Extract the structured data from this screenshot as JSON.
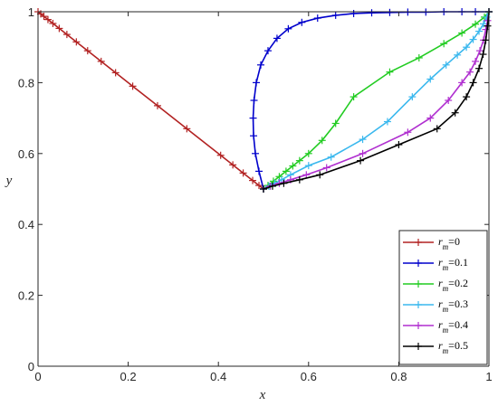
{
  "chart_data": {
    "type": "line",
    "xlabel": "x",
    "ylabel": "y",
    "xlim": [
      0,
      1
    ],
    "ylim": [
      0,
      1
    ],
    "xticks": [
      "0",
      "0.2",
      "0.4",
      "0.6",
      "0.8",
      "1"
    ],
    "yticks": [
      "0",
      "0.2",
      "0.4",
      "0.6",
      "0.8",
      "1"
    ],
    "grid": false,
    "legend_position": "bottom-right",
    "series": [
      {
        "name": "r_m=0",
        "legend_var": "r",
        "legend_sub": "m",
        "legend_val": "=0",
        "color": "#b22222",
        "x": [
          0.0,
          0.006,
          0.013,
          0.022,
          0.033,
          0.047,
          0.064,
          0.085,
          0.11,
          0.14,
          0.172,
          0.21,
          0.265,
          0.33,
          0.405,
          0.432,
          0.455,
          0.476,
          0.49,
          0.5
        ],
        "y": [
          1.0,
          0.994,
          0.987,
          0.978,
          0.967,
          0.953,
          0.936,
          0.915,
          0.89,
          0.86,
          0.828,
          0.79,
          0.735,
          0.67,
          0.595,
          0.568,
          0.545,
          0.524,
          0.51,
          0.5
        ]
      },
      {
        "name": "r_m=0.1",
        "legend_var": "r",
        "legend_sub": "m",
        "legend_val": "=0.1",
        "color": "#0000cc",
        "x": [
          0.5,
          0.49,
          0.482,
          0.478,
          0.477,
          0.479,
          0.484,
          0.494,
          0.51,
          0.53,
          0.555,
          0.585,
          0.62,
          0.66,
          0.7,
          0.74,
          0.78,
          0.82,
          0.86,
          0.9,
          0.94,
          0.97,
          1.0
        ],
        "y": [
          0.5,
          0.55,
          0.6,
          0.65,
          0.7,
          0.75,
          0.8,
          0.85,
          0.89,
          0.925,
          0.952,
          0.97,
          0.982,
          0.99,
          0.995,
          0.997,
          0.998,
          0.999,
          0.999,
          1.0,
          1.0,
          1.0,
          1.0
        ]
      },
      {
        "name": "r_m=0.2",
        "legend_var": "r",
        "legend_sub": "m",
        "legend_val": "=0.2",
        "color": "#22cc22",
        "x": [
          0.5,
          0.51,
          0.522,
          0.535,
          0.55,
          0.565,
          0.58,
          0.6,
          0.63,
          0.66,
          0.7,
          0.78,
          0.845,
          0.9,
          0.94,
          0.97,
          0.99,
          1.0
        ],
        "y": [
          0.5,
          0.51,
          0.522,
          0.535,
          0.55,
          0.565,
          0.58,
          0.6,
          0.637,
          0.685,
          0.76,
          0.83,
          0.87,
          0.91,
          0.94,
          0.965,
          0.985,
          1.0
        ]
      },
      {
        "name": "r_m=0.3",
        "legend_var": "r",
        "legend_sub": "m",
        "legend_val": "=0.3",
        "color": "#3ab8ee",
        "x": [
          0.5,
          0.512,
          0.525,
          0.54,
          0.56,
          0.6,
          0.65,
          0.72,
          0.775,
          0.83,
          0.87,
          0.905,
          0.93,
          0.95,
          0.965,
          0.978,
          0.988,
          0.995,
          1.0
        ],
        "y": [
          0.5,
          0.508,
          0.516,
          0.526,
          0.54,
          0.566,
          0.59,
          0.64,
          0.69,
          0.76,
          0.81,
          0.85,
          0.878,
          0.9,
          0.922,
          0.945,
          0.966,
          0.985,
          1.0
        ]
      },
      {
        "name": "r_m=0.4",
        "legend_var": "r",
        "legend_sub": "m",
        "legend_val": "=0.4",
        "color": "#b02fd0",
        "x": [
          0.5,
          0.515,
          0.535,
          0.56,
          0.595,
          0.64,
          0.72,
          0.82,
          0.87,
          0.91,
          0.94,
          0.958,
          0.97,
          0.98,
          0.988,
          0.993,
          0.997,
          1.0
        ],
        "y": [
          0.5,
          0.508,
          0.516,
          0.526,
          0.54,
          0.56,
          0.6,
          0.66,
          0.7,
          0.75,
          0.8,
          0.83,
          0.86,
          0.89,
          0.92,
          0.95,
          0.975,
          1.0
        ]
      },
      {
        "name": "r_m=0.5",
        "legend_var": "r",
        "legend_sub": "m",
        "legend_val": "=0.5",
        "color": "#000000",
        "x": [
          0.5,
          0.52,
          0.545,
          0.58,
          0.625,
          0.715,
          0.8,
          0.885,
          0.925,
          0.95,
          0.965,
          0.978,
          0.987,
          0.993,
          0.997,
          1.0
        ],
        "y": [
          0.5,
          0.508,
          0.516,
          0.526,
          0.54,
          0.58,
          0.625,
          0.67,
          0.715,
          0.76,
          0.8,
          0.84,
          0.88,
          0.92,
          0.96,
          1.0
        ]
      }
    ]
  }
}
